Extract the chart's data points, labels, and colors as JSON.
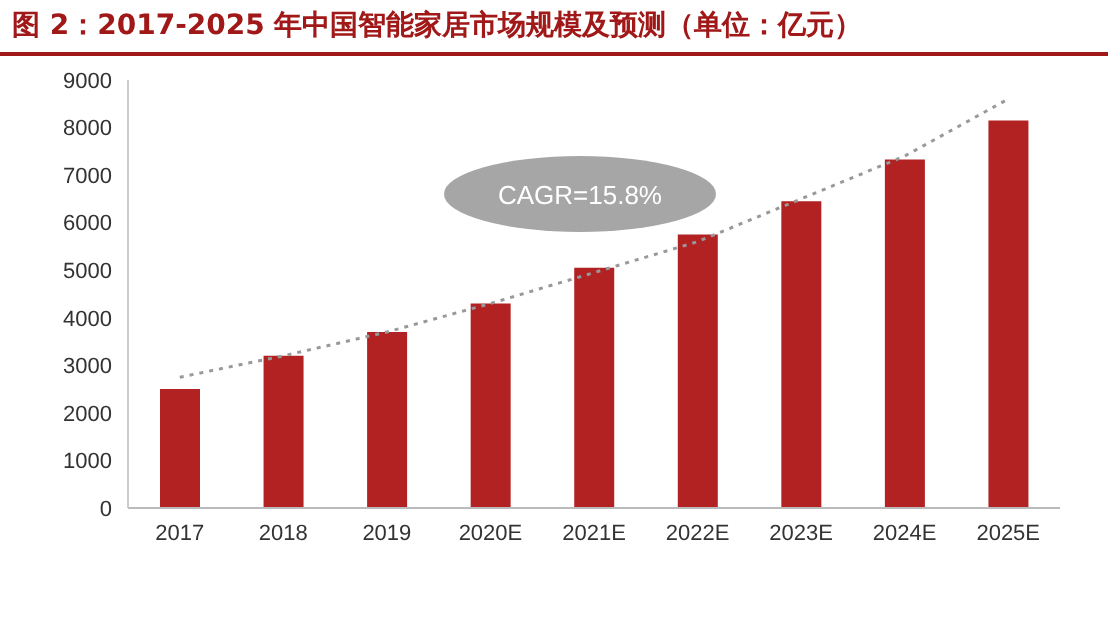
{
  "chart_data": {
    "type": "bar",
    "title": "图 2：2017-2025 年中国智能家居市场规模及预测（单位：亿元）",
    "categories": [
      "2017",
      "2018",
      "2019",
      "2020E",
      "2021E",
      "2022E",
      "2023E",
      "2024E",
      "2025E"
    ],
    "series": [
      {
        "color": "#b22222",
        "values": [
          2500,
          3200,
          3700,
          4300,
          5050,
          5750,
          6450,
          7330,
          8150
        ]
      },
      {
        "type": "line",
        "color": "#999999",
        "line_style": "dotted",
        "marker": "none",
        "values": [
          2750,
          3200,
          3700,
          4300,
          4950,
          5600,
          6500,
          7400,
          8600
        ]
      }
    ],
    "ylim": [
      0,
      9000
    ],
    "yticks": [
      0,
      1000,
      2000,
      3000,
      4000,
      5000,
      6000,
      7000,
      8000,
      9000
    ],
    "annotations": [
      "CAGR=15.8%"
    ]
  }
}
